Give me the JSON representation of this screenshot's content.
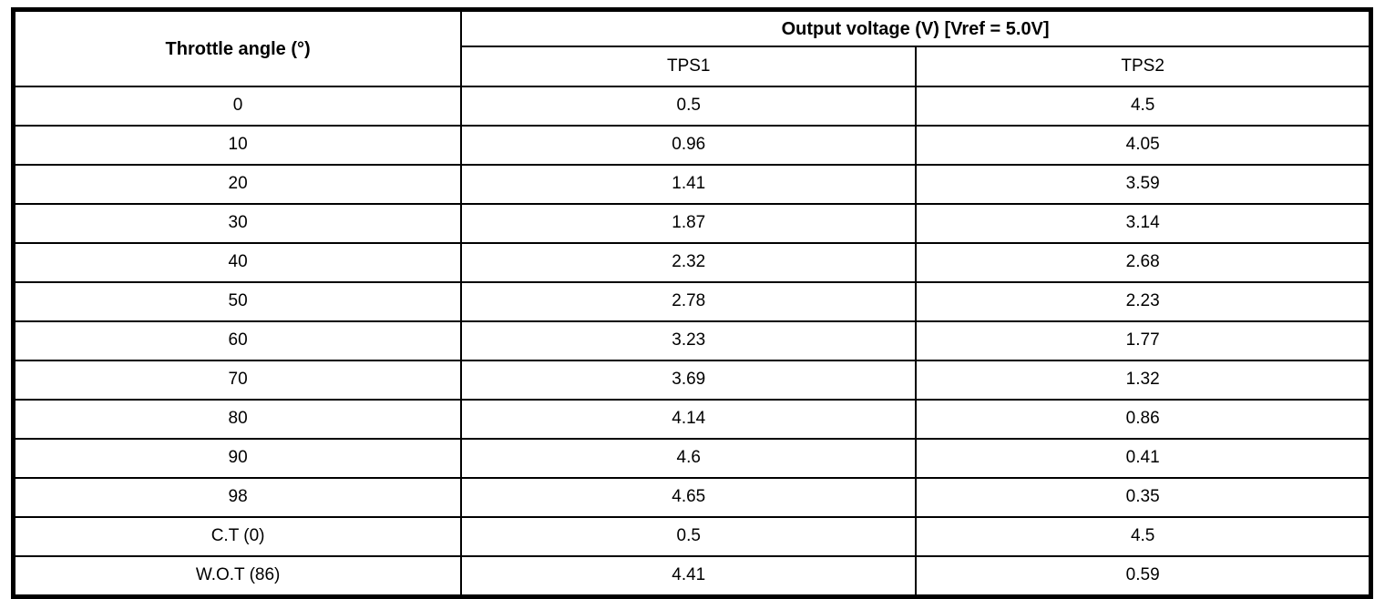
{
  "table": {
    "col1_header": "Throttle angle (°)",
    "group_header": "Output voltage (V) [Vref = 5.0V]",
    "subheaders": {
      "tps1": "TPS1",
      "tps2": "TPS2"
    },
    "rows": [
      {
        "angle": "0",
        "tps1": "0.5",
        "tps2": "4.5"
      },
      {
        "angle": "10",
        "tps1": "0.96",
        "tps2": "4.05"
      },
      {
        "angle": "20",
        "tps1": "1.41",
        "tps2": "3.59"
      },
      {
        "angle": "30",
        "tps1": "1.87",
        "tps2": "3.14"
      },
      {
        "angle": "40",
        "tps1": "2.32",
        "tps2": "2.68"
      },
      {
        "angle": "50",
        "tps1": "2.78",
        "tps2": "2.23"
      },
      {
        "angle": "60",
        "tps1": "3.23",
        "tps2": "1.77"
      },
      {
        "angle": "70",
        "tps1": "3.69",
        "tps2": "1.32"
      },
      {
        "angle": "80",
        "tps1": "4.14",
        "tps2": "0.86"
      },
      {
        "angle": "90",
        "tps1": "4.6",
        "tps2": "0.41"
      },
      {
        "angle": "98",
        "tps1": "4.65",
        "tps2": "0.35"
      },
      {
        "angle": "C.T (0)",
        "tps1": "0.5",
        "tps2": "4.5"
      },
      {
        "angle": "W.O.T (86)",
        "tps1": "4.41",
        "tps2": "0.59"
      }
    ]
  },
  "chart_data": {
    "type": "table",
    "title": "Output voltage (V) [Vref = 5.0V]",
    "columns": [
      "Throttle angle (°)",
      "TPS1",
      "TPS2"
    ],
    "categories": [
      "0",
      "10",
      "20",
      "30",
      "40",
      "50",
      "60",
      "70",
      "80",
      "90",
      "98",
      "C.T (0)",
      "W.O.T (86)"
    ],
    "series": [
      {
        "name": "TPS1",
        "values": [
          0.5,
          0.96,
          1.41,
          1.87,
          2.32,
          2.78,
          3.23,
          3.69,
          4.14,
          4.6,
          4.65,
          0.5,
          4.41
        ]
      },
      {
        "name": "TPS2",
        "values": [
          4.5,
          4.05,
          3.59,
          3.14,
          2.68,
          2.23,
          1.77,
          1.32,
          0.86,
          0.41,
          0.35,
          4.5,
          0.59
        ]
      }
    ],
    "border_color": "#000000",
    "background_color": "#ffffff"
  }
}
